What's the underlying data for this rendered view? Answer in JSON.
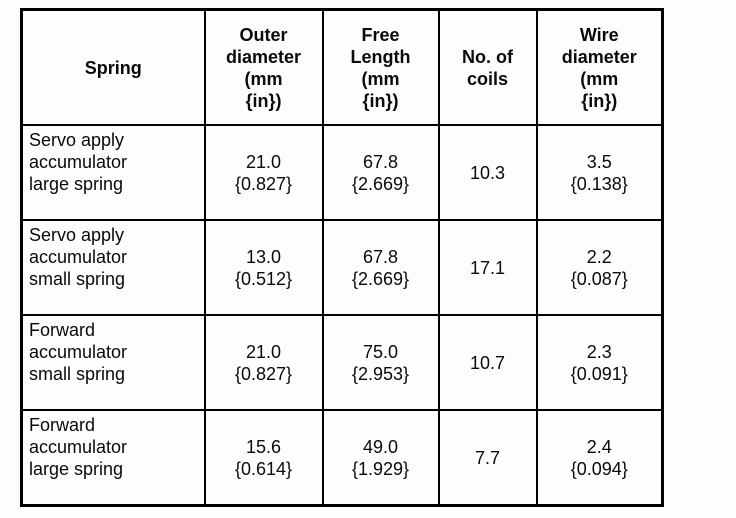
{
  "document": {
    "table": {
      "headers": [
        "Spring",
        "Outer\ndiameter\n(mm\n{in})",
        "Free\nLength\n(mm\n{in})",
        "No. of\ncoils",
        "Wire\ndiameter\n(mm\n{in})"
      ],
      "rows": [
        {
          "label": "Servo apply\naccumulator\nlarge spring",
          "outer_diameter": "21.0\n{0.827}",
          "free_length": "67.8\n{2.669}",
          "no_of_coils": "10.3",
          "wire_diameter": "3.5\n{0.138}"
        },
        {
          "label": "Servo apply\naccumulator\nsmall spring",
          "outer_diameter": "13.0\n{0.512}",
          "free_length": "67.8\n{2.669}",
          "no_of_coils": "17.1",
          "wire_diameter": "2.2\n{0.087}"
        },
        {
          "label": "Forward\naccumulator\nsmall spring",
          "outer_diameter": "21.0\n{0.827}",
          "free_length": "75.0\n{2.953}",
          "no_of_coils": "10.7",
          "wire_diameter": "2.3\n{0.091}"
        },
        {
          "label": "Forward\naccumulator\nlarge spring",
          "outer_diameter": "15.6\n{0.614}",
          "free_length": "49.0\n{1.929}",
          "no_of_coils": "7.7",
          "wire_diameter": "2.4\n{0.094}"
        }
      ]
    }
  }
}
